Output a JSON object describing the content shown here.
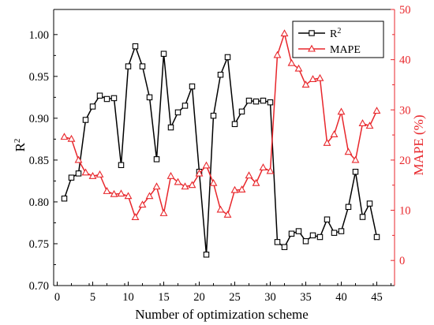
{
  "chart_data": {
    "type": "line",
    "xlabel": "Number of optimization scheme",
    "ylabel_left": "R",
    "ylabel_left_sup": "2",
    "ylabel_right": "MAPE (%)",
    "xlim": [
      -0.5,
      47.5
    ],
    "xticks": [
      0,
      5,
      10,
      15,
      20,
      25,
      30,
      35,
      40,
      45
    ],
    "ylim_left": [
      0.7,
      1.03
    ],
    "yticks_left": [
      0.7,
      0.75,
      0.8,
      0.85,
      0.9,
      0.95,
      1.0
    ],
    "ylim_right": [
      -5,
      50
    ],
    "yticks_right": [
      0,
      10,
      20,
      30,
      40,
      50
    ],
    "grid": false,
    "legend_position": "top-right",
    "colors": {
      "left_axis": "#000000",
      "right_axis": "#e8262b"
    },
    "legend": [
      {
        "label": "R",
        "sup": "2"
      },
      {
        "label": "MAPE",
        "sup": ""
      }
    ],
    "series": [
      {
        "name": "R²",
        "axis": "left",
        "color": "#000000",
        "marker": "square",
        "x": [
          1,
          2,
          3,
          4,
          5,
          6,
          7,
          8,
          9,
          10,
          11,
          12,
          13,
          14,
          15,
          16,
          17,
          18,
          19,
          20,
          21,
          22,
          23,
          24,
          25,
          26,
          27,
          28,
          29,
          30,
          31,
          32,
          33,
          34,
          35,
          36,
          37,
          38,
          39,
          40,
          41,
          42,
          43,
          44,
          45
        ],
        "y": [
          0.804,
          0.829,
          0.834,
          0.898,
          0.914,
          0.927,
          0.923,
          0.924,
          0.844,
          0.962,
          0.986,
          0.962,
          0.925,
          0.851,
          0.977,
          0.889,
          0.907,
          0.915,
          0.938,
          0.836,
          0.737,
          0.903,
          0.952,
          0.973,
          0.893,
          0.908,
          0.921,
          0.92,
          0.921,
          0.919,
          0.752,
          0.746,
          0.762,
          0.765,
          0.753,
          0.76,
          0.758,
          0.779,
          0.763,
          0.765,
          0.794,
          0.836,
          0.782,
          0.798,
          0.758
        ]
      },
      {
        "name": "MAPE",
        "axis": "right",
        "color": "#e8262b",
        "marker": "triangle",
        "x": [
          1,
          2,
          3,
          4,
          5,
          6,
          7,
          8,
          9,
          10,
          11,
          12,
          13,
          14,
          15,
          16,
          17,
          18,
          19,
          20,
          21,
          22,
          23,
          24,
          25,
          26,
          27,
          28,
          29,
          30,
          31,
          32,
          33,
          34,
          35,
          36,
          37,
          38,
          39,
          40,
          41,
          42,
          43,
          44,
          45
        ],
        "y": [
          24.6,
          24.2,
          20.0,
          17.5,
          16.8,
          17.1,
          13.8,
          13.2,
          13.3,
          12.8,
          8.6,
          11.1,
          12.8,
          14.7,
          9.4,
          16.8,
          15.6,
          14.7,
          15.0,
          17.3,
          18.9,
          15.4,
          10.1,
          9.1,
          14.0,
          14.1,
          16.9,
          15.4,
          18.5,
          17.8,
          40.9,
          45.2,
          39.3,
          38.2,
          35.0,
          36.1,
          36.3,
          23.4,
          25.1,
          29.6,
          21.6,
          20.0,
          27.3,
          26.8,
          29.8
        ]
      }
    ]
  }
}
